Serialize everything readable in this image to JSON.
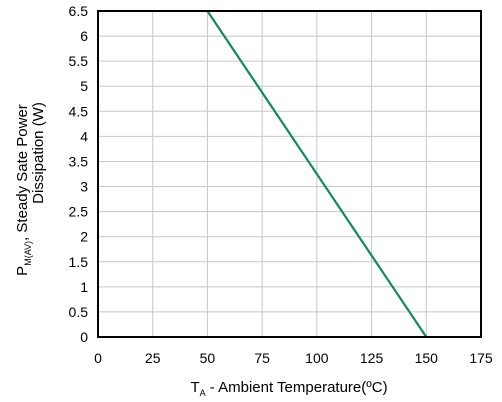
{
  "chart_data": {
    "type": "line",
    "xlabel": {
      "main": "T",
      "sub": "A",
      "rest": " - Ambient Temperature(ºC)"
    },
    "ylabel": {
      "line1": "Steady Sate Power",
      "line2": "Dissipation (W)",
      "prefix_main": "P",
      "prefix_sub": "M(AV)",
      "prefix_rest": ","
    },
    "xlim": [
      0,
      175
    ],
    "ylim": [
      0,
      6.5
    ],
    "xticks": [
      "0",
      "25",
      "50",
      "75",
      "100",
      "125",
      "150",
      "175"
    ],
    "yticks": [
      "0",
      "0.5",
      "1",
      "1.5",
      "2",
      "2.5",
      "3",
      "3.5",
      "4",
      "4.5",
      "5",
      "5.5",
      "6",
      "6.5"
    ],
    "grid": true,
    "series": [
      {
        "color": "#16895a",
        "x": [
          50,
          150
        ],
        "y": [
          6.5,
          0
        ]
      }
    ]
  }
}
